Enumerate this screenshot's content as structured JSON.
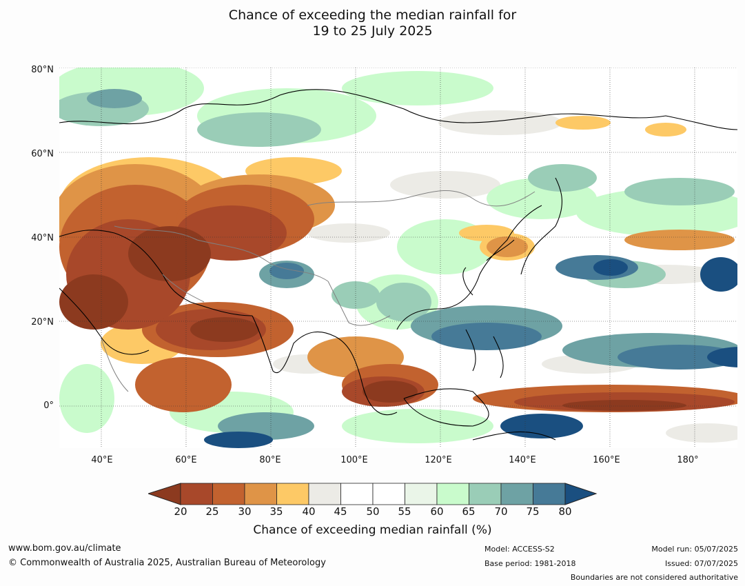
{
  "title": {
    "line1": "Chance of exceeding the median rainfall for",
    "line2": "19 to 25 July 2025"
  },
  "map": {
    "lat_labels": [
      "80°N",
      "60°N",
      "40°N",
      "20°N",
      "0°"
    ],
    "lon_labels": [
      "40°E",
      "60°E",
      "80°E",
      "100°E",
      "120°E",
      "140°E",
      "160°E",
      "180°"
    ],
    "lat_range": [
      -10,
      80
    ],
    "lon_range": [
      30,
      190
    ],
    "ocean_color": "#ffffff",
    "coastline_color": "#000000",
    "border_color": "#808080"
  },
  "colorbar": {
    "label": "Chance of exceeding median rainfall (%)",
    "ticks": [
      "20",
      "25",
      "30",
      "35",
      "40",
      "45",
      "50",
      "55",
      "60",
      "65",
      "70",
      "75",
      "80"
    ],
    "under_color": "#8c3a1f",
    "over_color": "#1a4f80",
    "colors": [
      "#a8482a",
      "#c2622f",
      "#df9447",
      "#fdc966",
      "#ecebe6",
      "#ffffff",
      "#ffffff",
      "#eaf5e8",
      "#c9fbcc",
      "#9acdb7",
      "#6ea2a4",
      "#467a97"
    ]
  },
  "footer": {
    "website": "www.bom.gov.au/climate",
    "copyright": "© Commonwealth of Australia 2025, Australian Bureau of Meteorology",
    "model": "Model: ACCESS-S2",
    "base_period": "Base period: 1981-2018",
    "model_run": "Model run: 05/07/2025",
    "issued": "Issued: 07/07/2025",
    "disclaimer": "Boundaries are not considered authoritative"
  }
}
